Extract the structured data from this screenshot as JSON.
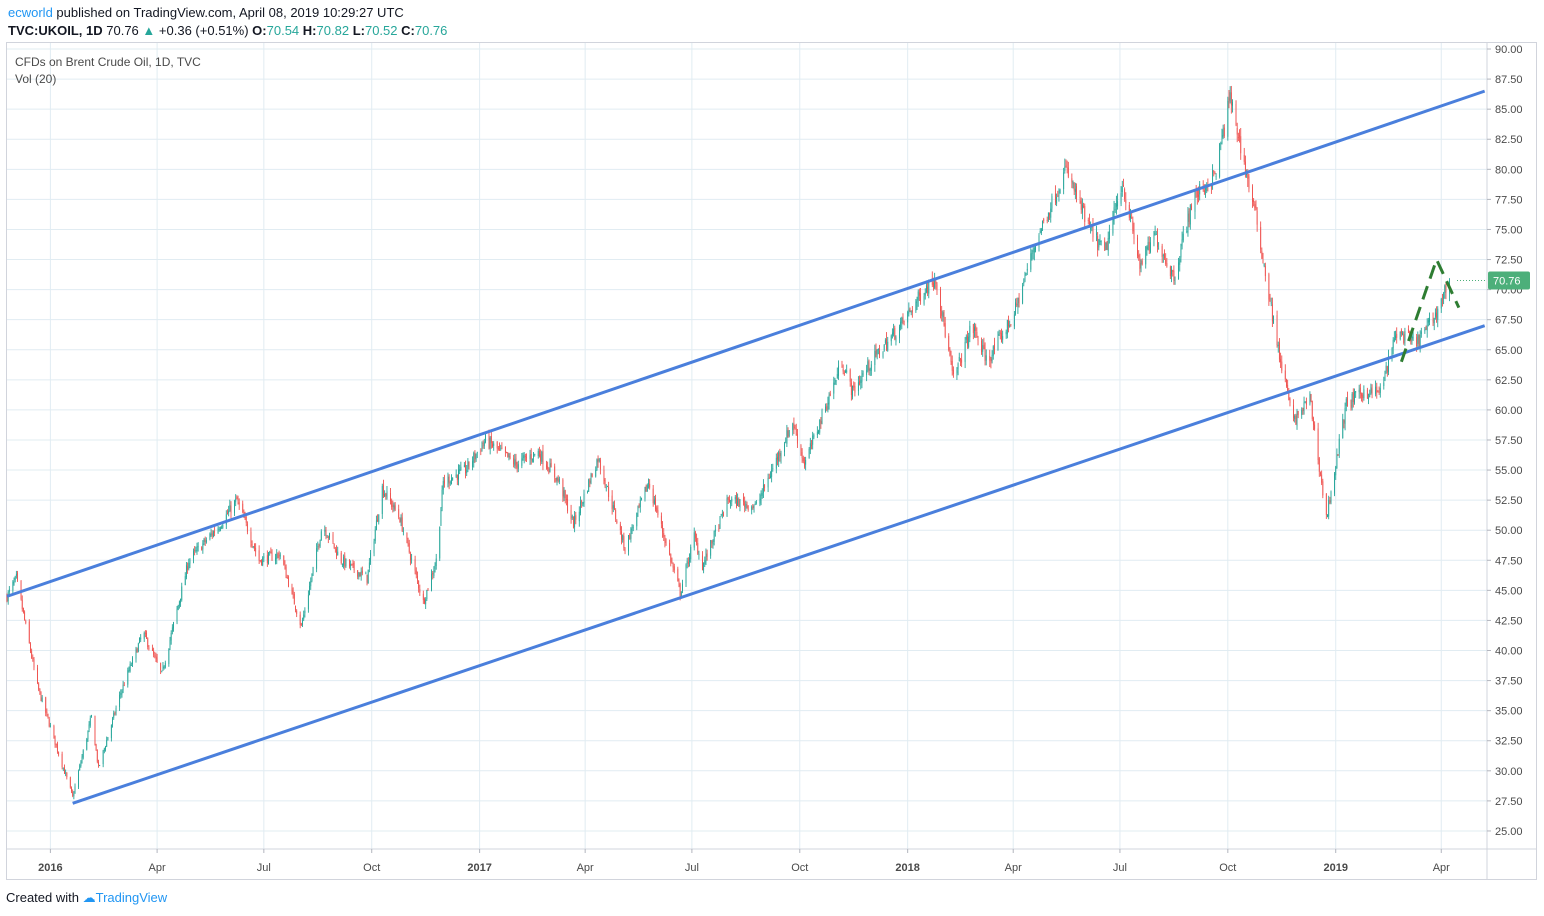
{
  "header": {
    "author": "ecworld",
    "published_text": " published on TradingView.com, April 08, 2019 10:29:27 UTC",
    "symbol_line": "TVC:UKOIL, 1D",
    "last": "70.76",
    "change": "+0.36 (+0.51%)",
    "o_label": "O:",
    "o": "70.54",
    "h_label": "H:",
    "h": "70.82",
    "l_label": "L:",
    "l": "70.52",
    "c_label": "C:",
    "c": "70.76"
  },
  "legend": {
    "instrument": "CFDs on Brent Crude Oil, 1D, TVC",
    "indicator": "Vol (20)"
  },
  "footer": {
    "created_with": "Created with",
    "brand": "TradingView"
  },
  "colors": {
    "up": "#26a69a",
    "down": "#ef5350",
    "channel": "#4a7fdc",
    "dashed": "#2e7d32",
    "grid": "#e1ecf2",
    "price_badge": "#4caf7a"
  },
  "chart_data": {
    "type": "candlestick",
    "title": "CFDs on Brent Crude Oil, 1D, TVC",
    "y_axis": {
      "range": [
        23.5,
        90.5
      ],
      "tick_labels": [
        "25.00",
        "27.50",
        "30.00",
        "32.50",
        "35.00",
        "37.50",
        "40.00",
        "42.50",
        "45.00",
        "47.50",
        "50.00",
        "52.50",
        "55.00",
        "57.50",
        "60.00",
        "62.50",
        "65.00",
        "67.50",
        "70.00",
        "72.50",
        "75.00",
        "77.50",
        "80.00",
        "82.50",
        "85.00",
        "87.50",
        "90.00"
      ],
      "last_price_label": "70.76"
    },
    "x_axis": {
      "tick_labels": [
        "2016",
        "Apr",
        "Jul",
        "Oct",
        "2017",
        "Apr",
        "Jul",
        "Oct",
        "2018",
        "Apr",
        "Jul",
        "Oct",
        "2019",
        "Apr"
      ],
      "tick_dates": [
        "2016-01-01",
        "2016-04-01",
        "2016-07-01",
        "2016-10-01",
        "2017-01-01",
        "2017-04-01",
        "2017-07-01",
        "2017-10-01",
        "2018-01-01",
        "2018-04-01",
        "2018-07-01",
        "2018-10-01",
        "2019-01-01",
        "2019-04-01"
      ],
      "range": [
        "2015-11-25",
        "2019-05-10"
      ]
    },
    "price_path": [
      [
        "2015-11-25",
        44.5
      ],
      [
        "2015-12-03",
        46.0
      ],
      [
        "2015-12-21",
        37.0
      ],
      [
        "2016-01-20",
        27.8
      ],
      [
        "2016-02-05",
        34.5
      ],
      [
        "2016-02-11",
        30.2
      ],
      [
        "2016-03-01",
        36.5
      ],
      [
        "2016-03-20",
        41.5
      ],
      [
        "2016-04-05",
        38.0
      ],
      [
        "2016-04-28",
        47.5
      ],
      [
        "2016-05-25",
        50.5
      ],
      [
        "2016-06-08",
        52.5
      ],
      [
        "2016-06-27",
        47.5
      ],
      [
        "2016-07-15",
        48.0
      ],
      [
        "2016-08-02",
        42.0
      ],
      [
        "2016-08-20",
        50.5
      ],
      [
        "2016-09-05",
        47.5
      ],
      [
        "2016-09-27",
        46.0
      ],
      [
        "2016-10-10",
        53.5
      ],
      [
        "2016-10-25",
        51.0
      ],
      [
        "2016-11-14",
        44.0
      ],
      [
        "2016-11-25",
        47.5
      ],
      [
        "2016-12-01",
        54.0
      ],
      [
        "2016-12-20",
        55.0
      ],
      [
        "2017-01-06",
        57.5
      ],
      [
        "2017-02-01",
        55.5
      ],
      [
        "2017-02-20",
        56.5
      ],
      [
        "2017-03-10",
        54.0
      ],
      [
        "2017-03-22",
        50.5
      ],
      [
        "2017-04-12",
        56.0
      ],
      [
        "2017-05-05",
        48.5
      ],
      [
        "2017-05-25",
        54.0
      ],
      [
        "2017-06-21",
        44.8
      ],
      [
        "2017-07-03",
        49.5
      ],
      [
        "2017-07-10",
        47.0
      ],
      [
        "2017-08-01",
        52.5
      ],
      [
        "2017-08-25",
        52.0
      ],
      [
        "2017-09-25",
        59.0
      ],
      [
        "2017-10-05",
        55.5
      ],
      [
        "2017-11-06",
        64.0
      ],
      [
        "2017-11-15",
        61.5
      ],
      [
        "2017-12-01",
        64.0
      ],
      [
        "2017-12-26",
        67.0
      ],
      [
        "2018-01-15",
        70.0
      ],
      [
        "2018-01-25",
        71.0
      ],
      [
        "2018-02-09",
        62.5
      ],
      [
        "2018-02-25",
        67.0
      ],
      [
        "2018-03-10",
        64.0
      ],
      [
        "2018-04-02",
        68.0
      ],
      [
        "2018-04-20",
        74.0
      ],
      [
        "2018-05-16",
        80.0
      ],
      [
        "2018-06-05",
        75.0
      ],
      [
        "2018-06-18",
        73.0
      ],
      [
        "2018-07-03",
        79.0
      ],
      [
        "2018-07-18",
        72.0
      ],
      [
        "2018-07-31",
        74.5
      ],
      [
        "2018-08-16",
        71.0
      ],
      [
        "2018-09-01",
        77.5
      ],
      [
        "2018-09-20",
        79.5
      ],
      [
        "2018-10-03",
        86.0
      ],
      [
        "2018-10-15",
        80.5
      ],
      [
        "2018-10-25",
        76.0
      ],
      [
        "2018-11-13",
        65.0
      ],
      [
        "2018-11-26",
        59.0
      ],
      [
        "2018-12-10",
        61.0
      ],
      [
        "2018-12-24",
        51.0
      ],
      [
        "2019-01-10",
        60.5
      ],
      [
        "2019-01-25",
        61.5
      ],
      [
        "2019-02-08",
        61.5
      ],
      [
        "2019-02-22",
        66.5
      ],
      [
        "2019-03-10",
        65.5
      ],
      [
        "2019-03-25",
        67.5
      ],
      [
        "2019-04-08",
        70.76
      ]
    ],
    "channel_lines": [
      {
        "name": "upper",
        "start": [
          "2015-11-25",
          44.5
        ],
        "end": [
          "2019-05-08",
          86.5
        ]
      },
      {
        "name": "lower",
        "start": [
          "2016-01-20",
          27.3
        ],
        "end": [
          "2019-05-08",
          67.0
        ]
      }
    ],
    "dashed_pattern": [
      [
        "2019-02-26",
        64.0
      ],
      [
        "2019-03-28",
        72.5
      ],
      [
        "2019-04-16",
        68.5
      ]
    ],
    "grid": true
  }
}
